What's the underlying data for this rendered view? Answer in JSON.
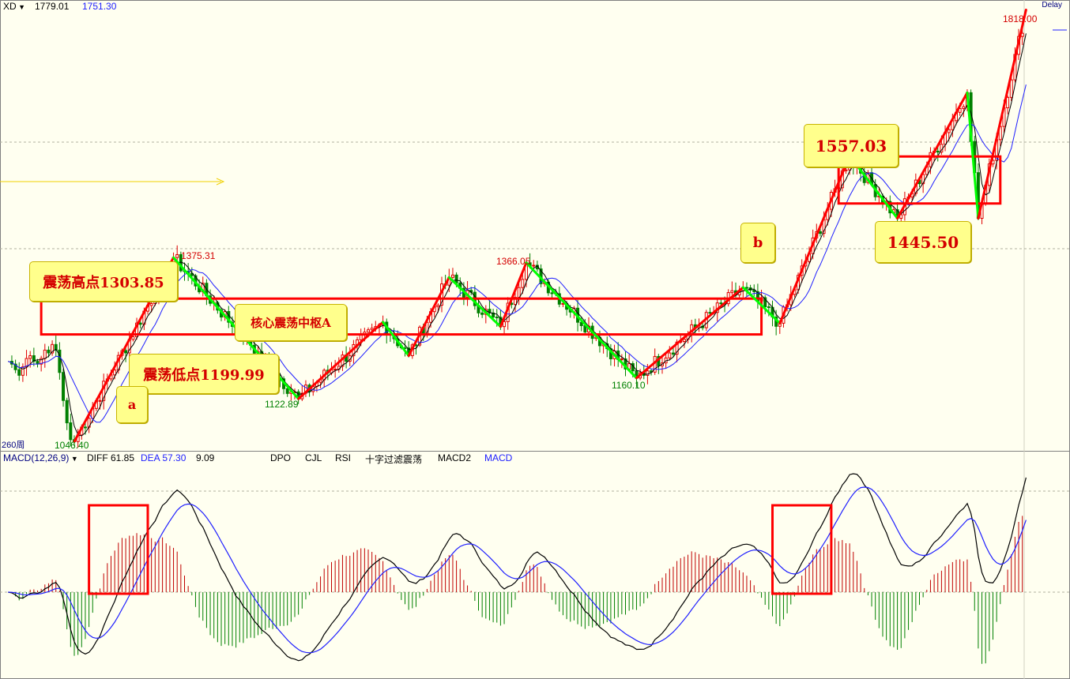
{
  "header": {
    "symbol": "XD",
    "value1": "1779.01",
    "value2": "1751.30",
    "delay": "Delay",
    "period": "260周"
  },
  "indicator_bar": {
    "name": "MACD(12,26,9)",
    "diff": "DIFF 61.85",
    "dea": "DEA 57.30",
    "macd": "9.09",
    "tabs": [
      "DPO",
      "CJL",
      "RSI",
      "十字过滤震荡",
      "MACD2",
      "MACD"
    ]
  },
  "annotations": {
    "high_box": "震荡高点1303.85",
    "low_box": "震荡低点1199.99",
    "center_box": "核心震荡中枢A",
    "a": "a",
    "b": "b",
    "p1557": "1557.03",
    "p1445": "1445.50"
  },
  "colors": {
    "up": "#e00000",
    "down": "#008000",
    "green_line": "#00ff00",
    "red_line": "#ff0000",
    "diff_line": "#000000",
    "dea_line": "#2020ff",
    "background": "#fffff0"
  },
  "chart_data": {
    "type": "candlestick",
    "price_range": [
      1030,
      1830
    ],
    "price_labels": [
      {
        "name": "hi1",
        "text": "1375.31",
        "value": 1375.31
      },
      {
        "name": "hi2",
        "text": "1366.05",
        "value": 1366.05
      },
      {
        "name": "hi3",
        "text": "1818.00",
        "value": 1818.0
      },
      {
        "name": "lo1",
        "text": "1046.40",
        "value": 1046.4
      },
      {
        "name": "lo2",
        "text": "1122.89",
        "value": 1122.89
      },
      {
        "name": "lo3",
        "text": "1160.10",
        "value": 1160.1
      }
    ],
    "pivots": [
      {
        "i": 0,
        "p": 1046.4,
        "kind": "L"
      },
      {
        "i": 27,
        "p": 1375.31,
        "kind": "H"
      },
      {
        "i": 61,
        "p": 1122.89,
        "kind": "L"
      },
      {
        "i": 84,
        "p": 1260,
        "kind": "H"
      },
      {
        "i": 91,
        "p": 1200,
        "kind": "L"
      },
      {
        "i": 102,
        "p": 1340,
        "kind": "H"
      },
      {
        "i": 116,
        "p": 1252,
        "kind": "L"
      },
      {
        "i": 123,
        "p": 1366.05,
        "kind": "H"
      },
      {
        "i": 153,
        "p": 1160.1,
        "kind": "L"
      },
      {
        "i": 182,
        "p": 1322,
        "kind": "H"
      },
      {
        "i": 192,
        "p": 1258,
        "kind": "L"
      },
      {
        "i": 211,
        "p": 1557.03,
        "kind": "H"
      },
      {
        "i": 224,
        "p": 1445.5,
        "kind": "L"
      },
      {
        "i": 243,
        "p": 1670,
        "kind": "H"
      },
      {
        "i": 246,
        "p": 1445.5,
        "kind": "L"
      },
      {
        "i": 259,
        "p": 1818.0,
        "kind": "H"
      }
    ],
    "pre_bars": [
      1190,
      1185,
      1175,
      1165,
      1180,
      1195,
      1200,
      1190,
      1185,
      1195,
      1210,
      1205,
      1220,
      1210,
      1170,
      1120,
      1080,
      1050
    ],
    "zigzag": [
      {
        "from": 0,
        "to": 27,
        "color": "red"
      },
      {
        "from": 27,
        "to": 61,
        "color": "green"
      },
      {
        "from": 61,
        "to": 84,
        "color": "red"
      },
      {
        "from": 84,
        "to": 91,
        "color": "green"
      },
      {
        "from": 91,
        "to": 102,
        "color": "red"
      },
      {
        "from": 102,
        "to": 116,
        "color": "green"
      },
      {
        "from": 116,
        "to": 123,
        "color": "red"
      },
      {
        "from": 123,
        "to": 153,
        "color": "green"
      },
      {
        "from": 153,
        "to": 182,
        "color": "red"
      },
      {
        "from": 182,
        "to": 192,
        "color": "green"
      },
      {
        "from": 192,
        "to": 211,
        "color": "red"
      },
      {
        "from": 211,
        "to": 224,
        "color": "green"
      },
      {
        "from": 224,
        "to": 243,
        "color": "red"
      },
      {
        "from": 243,
        "to": 246,
        "color": "green"
      },
      {
        "from": 246,
        "to": 259,
        "color": "red"
      }
    ],
    "boxes": [
      {
        "name": "center-zone-a-rect",
        "i0": -9,
        "i1": 187,
        "p0": 1238,
        "p1": 1302
      },
      {
        "name": "consolidation-zone-b-rect",
        "i0": 208,
        "i1": 252,
        "p0": 1472,
        "p1": 1556
      }
    ],
    "macd_boxes": [
      {
        "name": "macd-highlight-rect-1",
        "i0": 4,
        "i1": 20
      },
      {
        "name": "macd-highlight-rect-2",
        "i0": 190,
        "i1": 206
      }
    ]
  }
}
